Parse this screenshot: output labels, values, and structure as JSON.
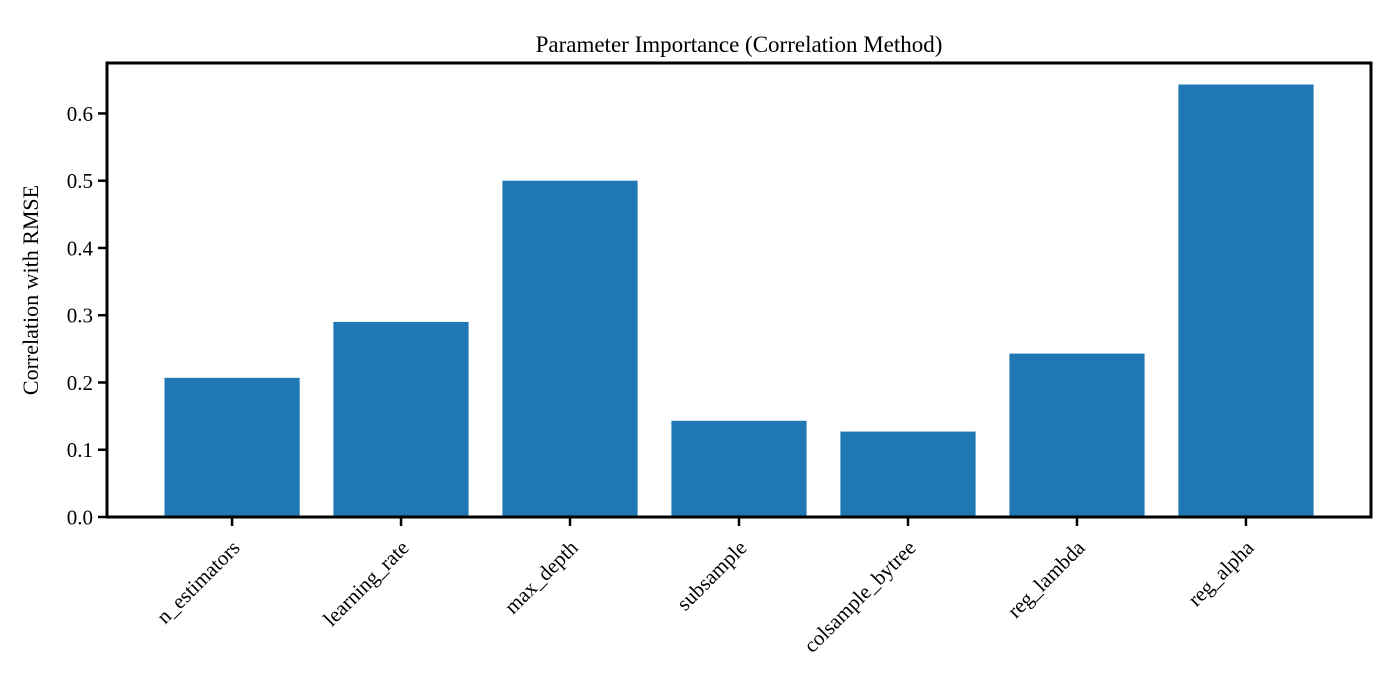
{
  "chart_data": {
    "type": "bar",
    "title": "Parameter Importance (Correlation Method)",
    "xlabel": "",
    "ylabel": "Correlation with RMSE",
    "categories": [
      "n_estimators",
      "learning_rate",
      "max_depth",
      "subsample",
      "colsample_bytree",
      "reg_lambda",
      "reg_alpha"
    ],
    "values": [
      0.207,
      0.29,
      0.5,
      0.143,
      0.127,
      0.243,
      0.643
    ],
    "ylim": [
      0,
      0.675
    ],
    "yticks": [
      0.0,
      0.1,
      0.2,
      0.3,
      0.4,
      0.5,
      0.6
    ],
    "ytick_labels": [
      "0.0",
      "0.1",
      "0.2",
      "0.3",
      "0.4",
      "0.5",
      "0.6"
    ],
    "xtick_rotation_deg": 45,
    "grid": false,
    "legend": false,
    "bar_color": "#1f77b4",
    "axis_color": "#000000",
    "background_color": "#ffffff"
  }
}
